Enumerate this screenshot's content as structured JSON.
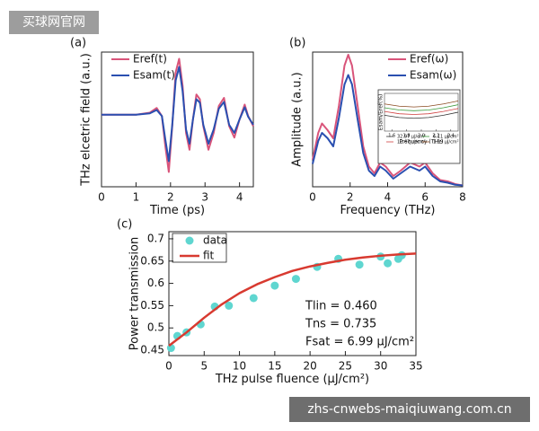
{
  "chart_data": [
    {
      "type": "line",
      "label": "(a)",
      "xlabel": "Time (ps)",
      "ylabel": "THz elcetric field (a.u.)",
      "xlim": [
        0,
        4.4
      ],
      "ylim": [
        -1,
        1
      ],
      "xticks": [
        0,
        1,
        2,
        3,
        4
      ],
      "x": [
        0,
        1.0,
        1.4,
        1.6,
        1.75,
        1.85,
        1.95,
        2.05,
        2.15,
        2.25,
        2.35,
        2.45,
        2.55,
        2.65,
        2.75,
        2.85,
        2.95,
        3.1,
        3.25,
        3.4,
        3.55,
        3.7,
        3.85,
        4.0,
        4.15,
        4.25,
        4.4
      ],
      "series": [
        {
          "name": "Eref(t)",
          "color": "#d9547a",
          "values": [
            0.07,
            0.07,
            0.1,
            0.17,
            0.05,
            -0.4,
            -0.78,
            -0.1,
            0.7,
            0.9,
            0.5,
            -0.2,
            -0.45,
            0.0,
            0.37,
            0.3,
            -0.1,
            -0.45,
            -0.2,
            0.2,
            0.32,
            -0.1,
            -0.27,
            0.0,
            0.22,
            0.05,
            -0.1
          ]
        },
        {
          "name": "Esam(t)",
          "color": "#2a4fb0",
          "values": [
            0.07,
            0.07,
            0.09,
            0.14,
            0.05,
            -0.3,
            -0.62,
            -0.08,
            0.58,
            0.78,
            0.42,
            -0.15,
            -0.36,
            0.0,
            0.3,
            0.25,
            -0.08,
            -0.36,
            -0.15,
            0.16,
            0.26,
            -0.08,
            -0.2,
            0.0,
            0.18,
            0.04,
            -0.08
          ]
        }
      ]
    },
    {
      "type": "line",
      "label": "(b)",
      "xlabel": "Frequency (THz)",
      "ylabel": "Amplitude (a.u.)",
      "xlim": [
        0,
        8
      ],
      "ylim": [
        0,
        1
      ],
      "xticks": [
        0,
        2,
        4,
        6,
        8
      ],
      "x": [
        0,
        0.3,
        0.5,
        0.8,
        1.1,
        1.4,
        1.7,
        1.9,
        2.1,
        2.4,
        2.7,
        3.0,
        3.3,
        3.6,
        3.9,
        4.3,
        4.7,
        5.2,
        5.7,
        6.0,
        6.4,
        6.8,
        7.2,
        7.6,
        8
      ],
      "series": [
        {
          "name": "Eref(ω)",
          "color": "#d9547a",
          "values": [
            0.2,
            0.4,
            0.47,
            0.42,
            0.36,
            0.6,
            0.9,
            0.98,
            0.9,
            0.6,
            0.3,
            0.15,
            0.1,
            0.18,
            0.15,
            0.08,
            0.12,
            0.18,
            0.15,
            0.18,
            0.1,
            0.05,
            0.04,
            0.02,
            0.01
          ]
        },
        {
          "name": "Esam(ω)",
          "color": "#2a4fb0",
          "values": [
            0.17,
            0.34,
            0.4,
            0.36,
            0.3,
            0.51,
            0.76,
            0.83,
            0.76,
            0.5,
            0.25,
            0.12,
            0.08,
            0.15,
            0.12,
            0.06,
            0.1,
            0.15,
            0.12,
            0.15,
            0.08,
            0.04,
            0.03,
            0.015,
            0.01
          ]
        }
      ]
    },
    {
      "type": "line",
      "xlabel": "Frequency (THz)",
      "ylabel": "Esam/Eref(%)",
      "xlim": [
        1.5,
        2.5
      ],
      "ylim": [
        0,
        1
      ],
      "xticks": [
        1.6,
        1.8,
        {
          "value": 2,
          "label": "2.0"
        },
        2.2,
        2.4
      ],
      "x": [
        1.5,
        1.7,
        1.9,
        2.1,
        2.3,
        2.5
      ],
      "series": [
        {
          "name": "32.97 μJ/cm²",
          "color": "#333333",
          "values": [
            0.42,
            0.36,
            0.34,
            0.36,
            0.42,
            0.5
          ]
        },
        {
          "name": "6.11 μJ/cm²",
          "color": "#3a9a3a",
          "values": [
            0.62,
            0.56,
            0.54,
            0.56,
            0.62,
            0.7
          ]
        },
        {
          "name": "12.67 μJ/cm²",
          "color": "#d04040",
          "values": [
            0.52,
            0.46,
            0.44,
            0.46,
            0.52,
            0.6
          ]
        },
        {
          "name": "1.59 μJ/cm²",
          "color": "#8a4a20",
          "values": [
            0.72,
            0.66,
            0.64,
            0.66,
            0.72,
            0.8
          ]
        }
      ]
    },
    {
      "type": "scatter",
      "label": "(c)",
      "xlabel": "THz pulse fluence (μJ/cm²)",
      "ylabel": "Power transmission",
      "xlim": [
        0,
        35
      ],
      "ylim": [
        0.438,
        0.716
      ],
      "xticks": [
        0,
        5,
        10,
        15,
        20,
        25,
        30,
        35
      ],
      "yticks": [
        0.45,
        0.5,
        0.55,
        0.6,
        0.65,
        0.7
      ],
      "series": [
        {
          "name": "data",
          "type": "scatter",
          "color": "#5fd6d0",
          "x": [
            0.3,
            1.2,
            2.5,
            4.5,
            6.5,
            8.5,
            12,
            15,
            18,
            21,
            24,
            27,
            30,
            31,
            32.5,
            33
          ],
          "values": [
            0.455,
            0.482,
            0.49,
            0.508,
            0.548,
            0.55,
            0.567,
            0.595,
            0.61,
            0.637,
            0.655,
            0.642,
            0.66,
            0.645,
            0.655,
            0.663
          ]
        },
        {
          "name": "fit",
          "type": "line",
          "color": "#d83a30",
          "x": [
            0,
            2.5,
            5,
            7.5,
            10,
            12.5,
            15,
            17.5,
            20,
            22.5,
            25,
            27.5,
            30,
            32.5,
            35
          ],
          "values": [
            0.46,
            0.49,
            0.523,
            0.553,
            0.578,
            0.598,
            0.614,
            0.628,
            0.638,
            0.646,
            0.653,
            0.658,
            0.662,
            0.665,
            0.667
          ]
        }
      ],
      "annotations": [
        "Tlin = 0.460",
        "Tns = 0.735",
        "Fsat = 6.99 μJ/cm²"
      ]
    }
  ],
  "watermarks": [
    "买球网官网",
    "zhs-cnwebs-maiqiuwang.com.cn"
  ]
}
